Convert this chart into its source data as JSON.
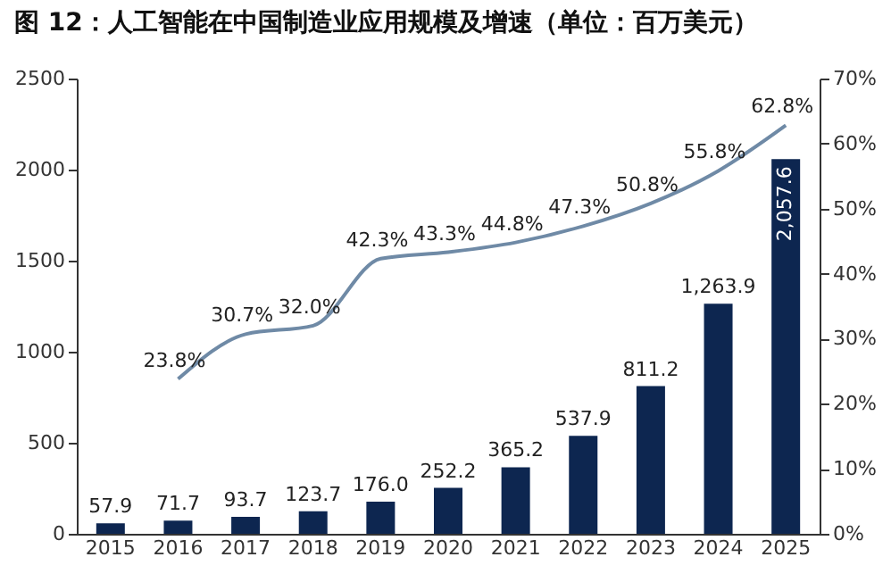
{
  "chart_data": {
    "type": "bar",
    "title": "图 12：人工智能在中国制造业应用规模及增速（单位：百万美元）",
    "categories": [
      "2015",
      "2016",
      "2017",
      "2018",
      "2019",
      "2020",
      "2021",
      "2022",
      "2023",
      "2024",
      "2025"
    ],
    "series": [
      {
        "color": "#0d2650",
        "values": [
          57.9,
          71.7,
          93.7,
          123.7,
          176.0,
          252.2,
          365.2,
          537.9,
          811.2,
          1263.9,
          2057.6
        ],
        "value_labels": [
          "57.9",
          "71.7",
          "93.7",
          "123.7",
          "176.0",
          "252.2",
          "365.2",
          "537.9",
          "811.2",
          "1,263.9",
          "2,057.6"
        ]
      },
      {
        "type": "line",
        "axis": "y2",
        "color": "#6f8aa6",
        "values": [
          null,
          23.8,
          30.7,
          32.0,
          42.3,
          43.3,
          44.8,
          47.3,
          50.8,
          55.8,
          62.8
        ],
        "value_labels": [
          null,
          "23.8%",
          "30.7%",
          "32.0%",
          "42.3%",
          "43.3%",
          "44.8%",
          "47.3%",
          "50.8%",
          "55.8%",
          "62.8%"
        ]
      }
    ],
    "ylim": [
      0,
      2500
    ],
    "yticks": [
      0,
      500,
      1000,
      1500,
      2000,
      2500
    ],
    "y2lim": [
      0,
      70
    ],
    "y2ticks": [
      {
        "value": 0,
        "label": "0%"
      },
      {
        "value": 10,
        "label": "10%"
      },
      {
        "value": 20,
        "label": "20%"
      },
      {
        "value": 30,
        "label": "30%"
      },
      {
        "value": 40,
        "label": "40%"
      },
      {
        "value": 50,
        "label": "50%"
      },
      {
        "value": 60,
        "label": "60%"
      },
      {
        "value": 70,
        "label": "70%"
      }
    ],
    "grid": false,
    "marker": "none",
    "line_style": "solid"
  }
}
